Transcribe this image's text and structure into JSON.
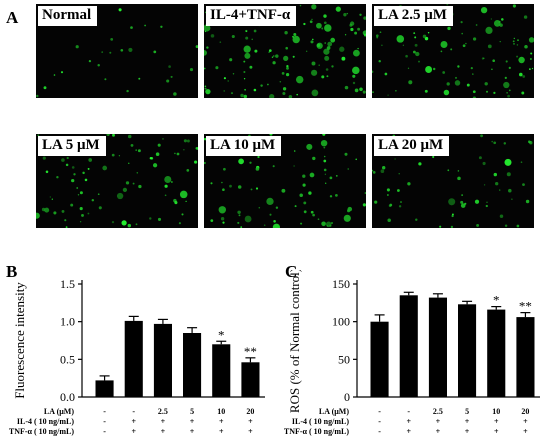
{
  "panel_a": {
    "letter": "A",
    "images": [
      {
        "label": "Normal",
        "density": 0.12
      },
      {
        "label": "IL-4+TNF-α",
        "density": 1.0
      },
      {
        "label": "LA 2.5 μM",
        "density": 0.78
      },
      {
        "label": "LA 5 μM",
        "density": 0.62
      },
      {
        "label": "LA 10 μM",
        "density": 0.55
      },
      {
        "label": "LA 20 μM",
        "density": 0.42
      }
    ]
  },
  "chart_data": [
    {
      "panel_letter": "B",
      "type": "bar",
      "ylabel": "Fluorescence intensity",
      "ylim": [
        0,
        1.5
      ],
      "yticks": [
        "0.0",
        "0.5",
        "1.0",
        "1.5"
      ],
      "ytick_values": [
        0,
        0.5,
        1.0,
        1.5
      ],
      "values": [
        0.22,
        1.01,
        0.97,
        0.85,
        0.7,
        0.46
      ],
      "errors": [
        0.06,
        0.06,
        0.06,
        0.07,
        0.04,
        0.06
      ],
      "significance": [
        "",
        "",
        "",
        "",
        "*",
        "**"
      ],
      "bar_color": "#000000",
      "conditions": [
        {
          "label": "LA (μM)",
          "values": [
            "-",
            "-",
            "2.5",
            "5",
            "10",
            "20"
          ]
        },
        {
          "label": "IL-4 ( 10 ng/mL)",
          "values": [
            "-",
            "+",
            "+",
            "+",
            "+",
            "+"
          ]
        },
        {
          "label": "TNF-α ( 10 ng/mL)",
          "values": [
            "-",
            "+",
            "+",
            "+",
            "+",
            "+"
          ]
        }
      ]
    },
    {
      "panel_letter": "C",
      "type": "bar",
      "ylabel": "ROS (% of Normal control)",
      "ylim": [
        0,
        150
      ],
      "yticks": [
        "0",
        "50",
        "100",
        "150"
      ],
      "ytick_values": [
        0,
        50,
        100,
        150
      ],
      "values": [
        100,
        135,
        132,
        123,
        116,
        106
      ],
      "errors": [
        9,
        4,
        5,
        4,
        4,
        6
      ],
      "significance": [
        "",
        "",
        "",
        "",
        "*",
        "**"
      ],
      "bar_color": "#000000",
      "conditions": [
        {
          "label": "LA (μM)",
          "values": [
            "-",
            "-",
            "2.5",
            "5",
            "10",
            "20"
          ]
        },
        {
          "label": "IL-4 ( 10 ng/mL)",
          "values": [
            "-",
            "+",
            "+",
            "+",
            "+",
            "+"
          ]
        },
        {
          "label": "TNF-α ( 10 ng/mL)",
          "values": [
            "-",
            "+",
            "+",
            "+",
            "+",
            "+"
          ]
        }
      ]
    }
  ]
}
